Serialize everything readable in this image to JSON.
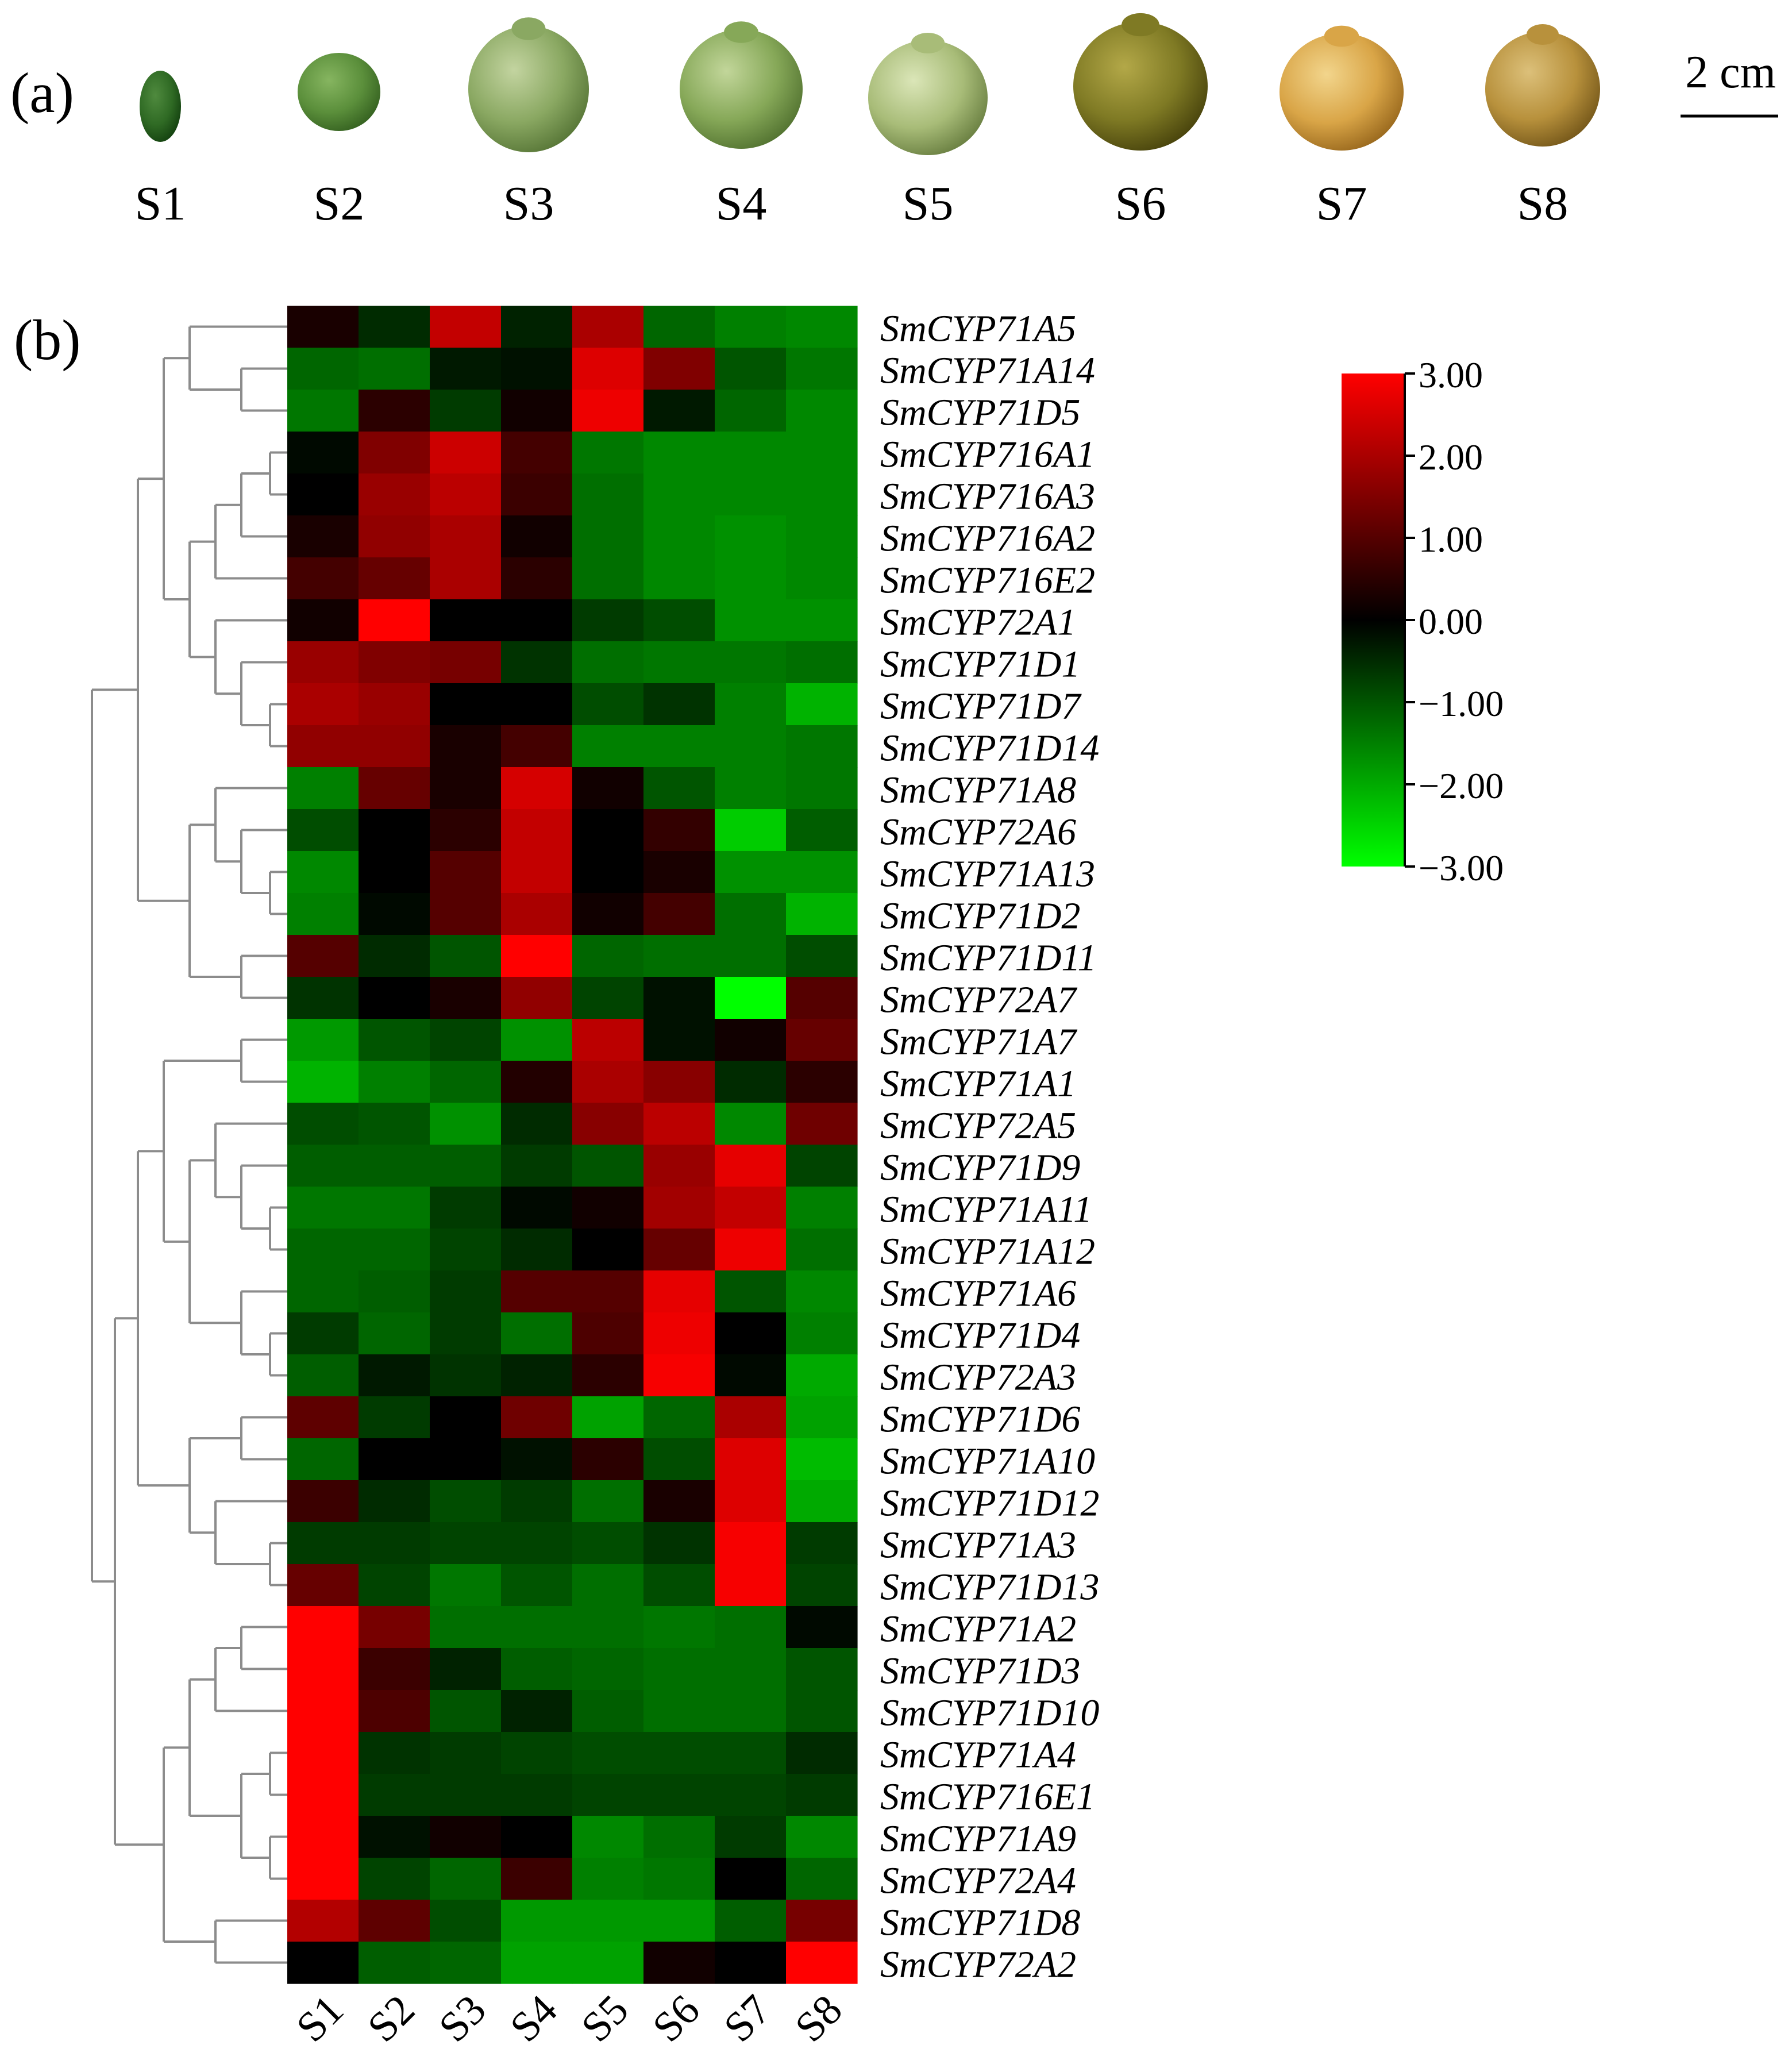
{
  "panel_a": {
    "label": "(a)",
    "stages": [
      "S1",
      "S2",
      "S3",
      "S4",
      "S5",
      "S6",
      "S7",
      "S8"
    ],
    "scale_bar_label": "2 cm",
    "fruit_colors": [
      {
        "fill": "#2f6a24",
        "shade": "#0f3a0c",
        "light": "#4f8a3e"
      },
      {
        "fill": "#5b8f3b",
        "shade": "#2f5a1c",
        "light": "#86b560"
      },
      {
        "fill": "#8aa862",
        "shade": "#4f6e30",
        "light": "#c3d4a0"
      },
      {
        "fill": "#86a858",
        "shade": "#4a6a2a",
        "light": "#c2d69a"
      },
      {
        "fill": "#a8bc78",
        "shade": "#5f7538",
        "light": "#dbe6b8"
      },
      {
        "fill": "#7f7a24",
        "shade": "#3f3a08",
        "light": "#b3a848"
      },
      {
        "fill": "#d9a547",
        "shade": "#8e5e16",
        "light": "#f2d58c"
      },
      {
        "fill": "#b8913c",
        "shade": "#6a4e14",
        "light": "#dcc07a"
      }
    ]
  },
  "panel_b": {
    "label": "(b)"
  },
  "chart_data": {
    "type": "heatmap",
    "title": "",
    "columns": [
      "S1",
      "S2",
      "S3",
      "S4",
      "S5",
      "S6",
      "S7",
      "S8"
    ],
    "rows": [
      "SmCYP71A5",
      "SmCYP71A14",
      "SmCYP71D5",
      "SmCYP716A1",
      "SmCYP716A3",
      "SmCYP716A2",
      "SmCYP716E2",
      "SmCYP72A1",
      "SmCYP71D1",
      "SmCYP71D7",
      "SmCYP71D14",
      "SmCYP71A8",
      "SmCYP72A6",
      "SmCYP71A13",
      "SmCYP71D2",
      "SmCYP71D11",
      "SmCYP72A7",
      "SmCYP71A7",
      "SmCYP71A1",
      "SmCYP72A5",
      "SmCYP71D9",
      "SmCYP71A11",
      "SmCYP71A12",
      "SmCYP71A6",
      "SmCYP71D4",
      "SmCYP72A3",
      "SmCYP71D6",
      "SmCYP71A10",
      "SmCYP71D12",
      "SmCYP71A3",
      "SmCYP71D13",
      "SmCYP71A2",
      "SmCYP71D3",
      "SmCYP71D10",
      "SmCYP71A4",
      "SmCYP716E1",
      "SmCYP71A9",
      "SmCYP72A4",
      "SmCYP71D8",
      "SmCYP72A2"
    ],
    "values": [
      [
        0.3,
        -0.5,
        2.3,
        -0.4,
        2.0,
        -1.2,
        -1.5,
        -1.6
      ],
      [
        -1.2,
        -1.3,
        -0.3,
        -0.2,
        2.6,
        1.5,
        -1.0,
        -1.4
      ],
      [
        -1.4,
        0.5,
        -0.7,
        0.2,
        2.8,
        -0.3,
        -1.2,
        -1.6
      ],
      [
        -0.1,
        1.5,
        2.4,
        0.8,
        -1.4,
        -1.6,
        -1.6,
        -1.6
      ],
      [
        0.0,
        1.8,
        2.2,
        0.7,
        -1.3,
        -1.6,
        -1.6,
        -1.6
      ],
      [
        0.3,
        1.7,
        2.0,
        0.2,
        -1.3,
        -1.6,
        -1.7,
        -1.6
      ],
      [
        0.8,
        1.2,
        2.0,
        0.5,
        -1.3,
        -1.6,
        -1.7,
        -1.6
      ],
      [
        0.2,
        3.0,
        0.0,
        0.0,
        -0.7,
        -0.9,
        -1.7,
        -1.7
      ],
      [
        1.8,
        1.5,
        1.4,
        -0.6,
        -1.3,
        -1.4,
        -1.4,
        -1.3
      ],
      [
        2.0,
        1.8,
        0.0,
        0.0,
        -0.9,
        -0.6,
        -1.5,
        -2.1
      ],
      [
        1.7,
        1.7,
        0.3,
        0.8,
        -1.5,
        -1.5,
        -1.5,
        -1.4
      ],
      [
        -1.5,
        1.2,
        0.3,
        2.5,
        0.2,
        -1.0,
        -1.5,
        -1.4
      ],
      [
        -0.9,
        0.0,
        0.5,
        2.3,
        0.0,
        0.6,
        -2.4,
        -1.1
      ],
      [
        -1.6,
        0.0,
        1.0,
        2.3,
        0.0,
        0.3,
        -1.7,
        -1.7
      ],
      [
        -1.5,
        -0.1,
        1.0,
        2.0,
        0.2,
        0.8,
        -1.3,
        -2.1
      ],
      [
        1.0,
        -0.5,
        -1.0,
        3.0,
        -1.2,
        -1.3,
        -1.3,
        -0.9
      ],
      [
        -0.6,
        0.0,
        0.3,
        1.7,
        -0.8,
        -0.2,
        -3.0,
        1.0
      ],
      [
        -1.8,
        -1.0,
        -0.8,
        -1.7,
        2.2,
        -0.2,
        0.2,
        1.2
      ],
      [
        -2.1,
        -1.5,
        -1.2,
        0.4,
        2.0,
        1.6,
        -0.5,
        0.5
      ],
      [
        -0.9,
        -1.0,
        -1.7,
        -0.5,
        1.6,
        2.2,
        -1.6,
        1.3
      ],
      [
        -1.1,
        -1.1,
        -1.1,
        -0.7,
        -1.0,
        1.8,
        2.7,
        -0.8
      ],
      [
        -1.4,
        -1.4,
        -0.7,
        -0.1,
        0.2,
        1.9,
        2.3,
        -1.5
      ],
      [
        -1.2,
        -1.2,
        -0.8,
        -0.5,
        0.0,
        1.2,
        2.8,
        -1.3
      ],
      [
        -1.2,
        -1.1,
        -0.7,
        1.0,
        1.0,
        2.7,
        -1.0,
        -1.6
      ],
      [
        -0.7,
        -1.2,
        -0.7,
        -1.3,
        0.9,
        2.8,
        0.0,
        -1.5
      ],
      [
        -1.1,
        -0.3,
        -0.6,
        -0.4,
        0.5,
        2.9,
        -0.1,
        -2.0
      ],
      [
        1.1,
        -0.7,
        0.0,
        1.3,
        -1.9,
        -1.2,
        2.0,
        -1.9
      ],
      [
        -1.2,
        0.0,
        0.0,
        -0.2,
        0.5,
        -0.9,
        2.6,
        -2.2
      ],
      [
        0.7,
        -0.5,
        -0.9,
        -0.7,
        -1.3,
        0.3,
        2.6,
        -2.0
      ],
      [
        -0.7,
        -0.7,
        -0.8,
        -0.8,
        -0.9,
        -0.6,
        2.9,
        -0.7
      ],
      [
        1.2,
        -0.8,
        -1.4,
        -1.0,
        -1.3,
        -0.9,
        2.9,
        -0.8
      ],
      [
        3.0,
        1.4,
        -1.3,
        -1.3,
        -1.3,
        -1.4,
        -1.3,
        -0.1
      ],
      [
        3.0,
        0.7,
        -0.4,
        -1.1,
        -1.2,
        -1.3,
        -1.3,
        -1.0
      ],
      [
        3.0,
        0.9,
        -1.0,
        -0.4,
        -1.1,
        -1.3,
        -1.3,
        -1.0
      ],
      [
        3.0,
        -0.6,
        -0.7,
        -0.8,
        -0.9,
        -0.9,
        -0.9,
        -0.5
      ],
      [
        3.0,
        -0.7,
        -0.7,
        -0.7,
        -0.8,
        -0.8,
        -0.8,
        -0.7
      ],
      [
        3.0,
        -0.2,
        0.2,
        0.0,
        -1.6,
        -1.3,
        -0.7,
        -1.6
      ],
      [
        3.0,
        -0.8,
        -1.2,
        0.7,
        -1.5,
        -1.4,
        0.0,
        -1.2
      ],
      [
        2.1,
        1.1,
        -0.9,
        -1.8,
        -1.8,
        -1.8,
        -1.1,
        1.4
      ],
      [
        0.0,
        -1.1,
        -1.2,
        -1.9,
        -1.9,
        0.2,
        0.0,
        3.0
      ]
    ],
    "colorbar": {
      "min": -3.0,
      "max": 3.0,
      "colors": [
        "#00ff00",
        "#000000",
        "#ff0000"
      ],
      "ticks": [
        "3.00",
        "2.00",
        "1.00",
        "0.00",
        "−1.00",
        "−2.00",
        "−3.00"
      ]
    }
  }
}
